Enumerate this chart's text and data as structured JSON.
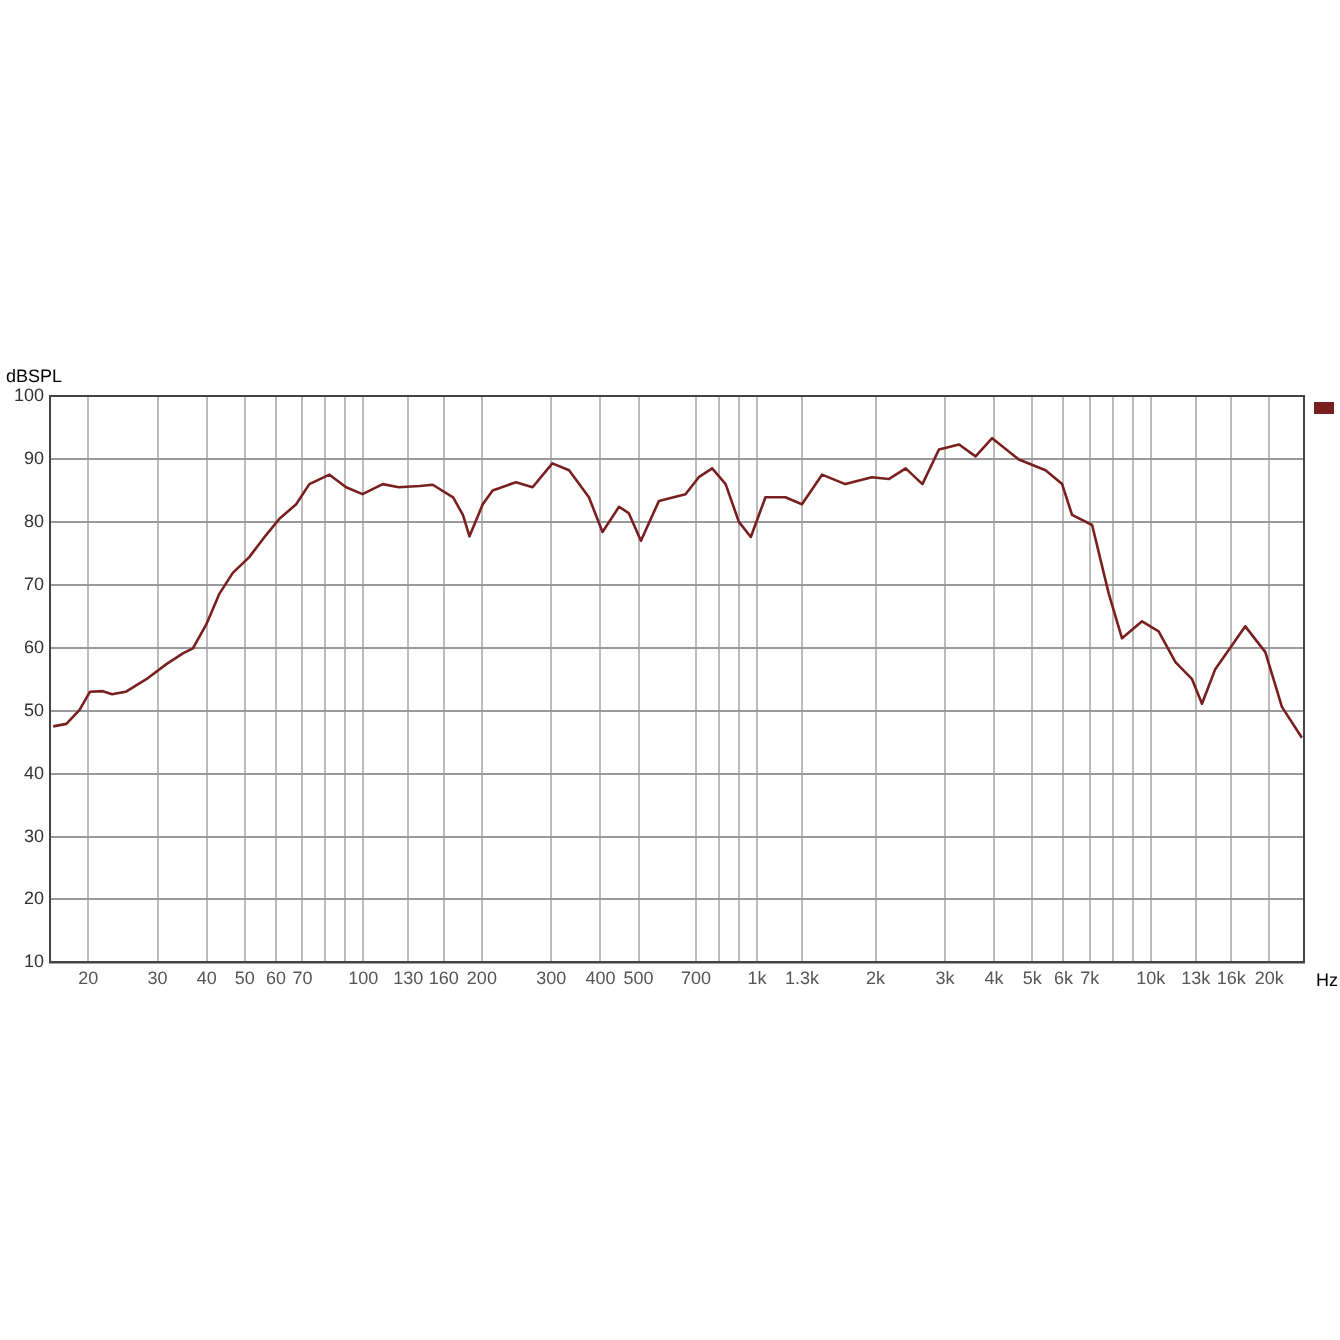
{
  "chart_data": {
    "type": "line",
    "xlabel": "Hz",
    "ylabel": "dBSPL",
    "log": "x",
    "grid": true,
    "legend": false,
    "marker": "none",
    "line_style": "solid",
    "xlim": [
      16,
      24500
    ],
    "ylim": [
      10,
      100
    ],
    "xticks": [
      20,
      30,
      40,
      50,
      60,
      70,
      {
        "value": 80,
        "label": null
      },
      {
        "value": 90,
        "label": null
      },
      100,
      130,
      160,
      200,
      300,
      400,
      500,
      700,
      {
        "value": 800,
        "label": null
      },
      {
        "value": 900,
        "label": null
      },
      {
        "value": 1000,
        "label": "1k"
      },
      {
        "value": 1300,
        "label": "1.3k"
      },
      {
        "value": 2000,
        "label": "2k"
      },
      {
        "value": 3000,
        "label": "3k"
      },
      {
        "value": 4000,
        "label": "4k"
      },
      {
        "value": 5000,
        "label": "5k"
      },
      {
        "value": 6000,
        "label": "6k"
      },
      {
        "value": 7000,
        "label": "7k"
      },
      {
        "value": 8000,
        "label": null
      },
      {
        "value": 9000,
        "label": null
      },
      {
        "value": 10000,
        "label": "10k"
      },
      {
        "value": 13000,
        "label": "13k"
      },
      {
        "value": 16000,
        "label": "16k"
      },
      {
        "value": 20000,
        "label": "20k"
      }
    ],
    "yticks": [
      10,
      20,
      30,
      40,
      50,
      60,
      70,
      80,
      90,
      100
    ],
    "series": [
      {
        "color": "#7a1f1f",
        "x": [
          16.3,
          17.6,
          19,
          20.2,
          21.8,
          23,
          24.9,
          28.1,
          31.6,
          34.8,
          36.9,
          39.9,
          43.1,
          46.6,
          51.3,
          56.6,
          61.2,
          67.5,
          72.9,
          82,
          90.4,
          99.5,
          112,
          123,
          139,
          150,
          169,
          179,
          186,
          201,
          213,
          244,
          269,
          302,
          333,
          374,
          405,
          446,
          472,
          507,
          563,
          658,
          711,
          769,
          832,
          899,
          964,
          1050,
          1180,
          1300,
          1462,
          1675,
          1958,
          2160,
          2385,
          2630,
          2897,
          3258,
          3589,
          3955,
          4624,
          5404,
          5953,
          6310,
          7096,
          7820,
          8453,
          9502,
          10470,
          11550,
          12730,
          13490,
          14580,
          17380,
          19540,
          21530,
          24200
        ],
        "values": [
          47.5,
          47.9,
          50.1,
          53,
          53.1,
          52.6,
          53,
          55,
          57.4,
          59.1,
          59.9,
          63.7,
          68.6,
          71.9,
          74.4,
          77.9,
          80.5,
          82.8,
          86,
          87.5,
          85.5,
          84.4,
          86,
          85.5,
          85.7,
          85.9,
          83.9,
          81.1,
          77.7,
          82.8,
          85,
          86.3,
          85.5,
          89.3,
          88.2,
          83.9,
          78.4,
          82.4,
          81.4,
          77,
          83.3,
          84.4,
          87.1,
          88.5,
          86,
          80,
          77.6,
          83.9,
          83.9,
          82.8,
          87.5,
          86,
          87.1,
          86.8,
          88.5,
          86,
          91.5,
          92.3,
          90.4,
          93.3,
          89.9,
          88.2,
          86,
          81.1,
          79.5,
          68.6,
          61.5,
          64.2,
          62.6,
          57.7,
          55,
          51.1,
          56.6,
          63.4,
          59.3,
          50.6,
          45.7
        ]
      }
    ]
  }
}
